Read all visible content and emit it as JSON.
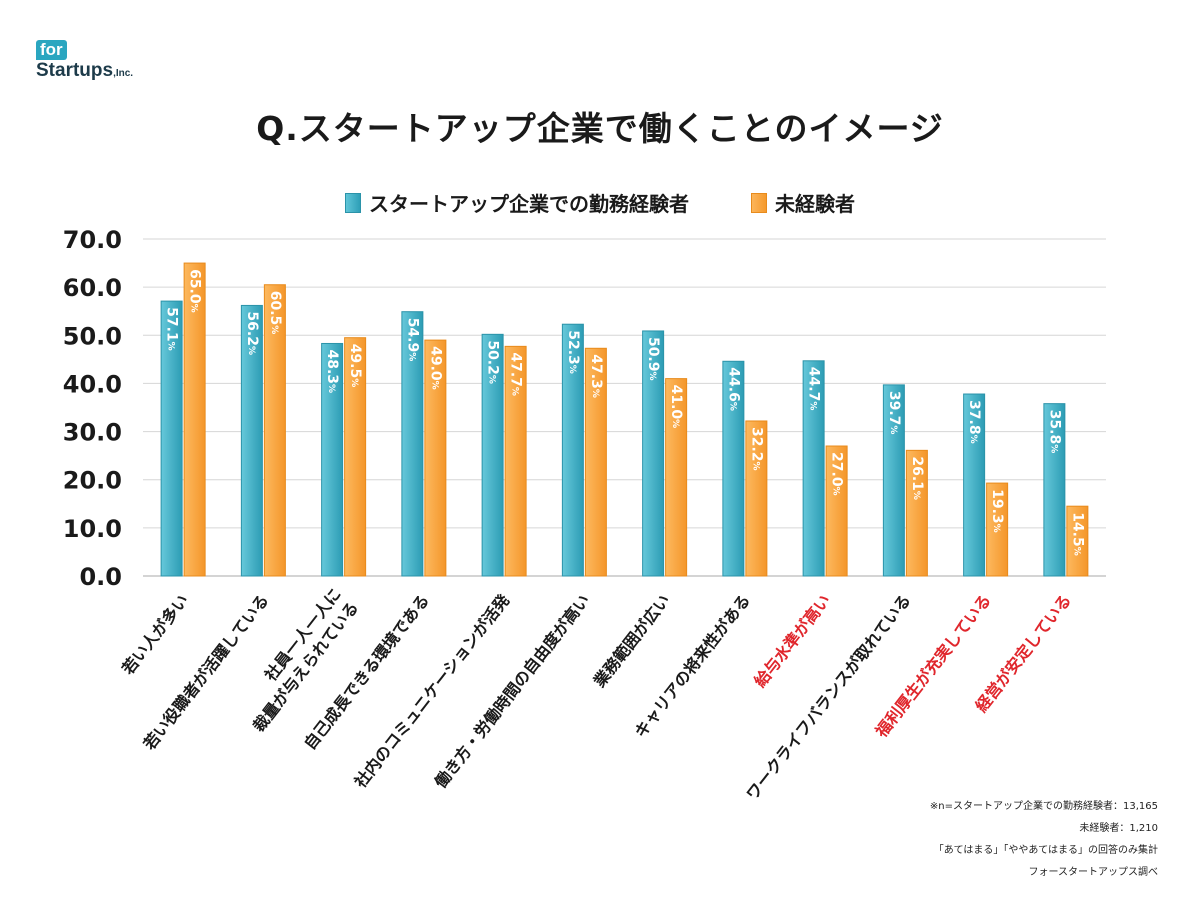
{
  "logo": {
    "badge": "for",
    "name": "Startups",
    "suffix": ",Inc."
  },
  "chart_data": {
    "type": "bar",
    "title": "Q.スタートアップ企業で働くことのイメージ",
    "xlabel": "",
    "ylabel": "",
    "ylim": [
      0,
      70
    ],
    "yticks": [
      "0.0",
      "10.0",
      "20.0",
      "30.0",
      "40.0",
      "50.0",
      "60.0",
      "70.0"
    ],
    "grid": true,
    "legend_position": "top-center",
    "value_suffix": "%",
    "categories": [
      "若い人が多い",
      "若い役職者が活躍している",
      "社員一人一人に\n裁量が与えられている",
      "自己成長できる環境である",
      "社内のコミュニケーションが活発",
      "働き方・労働時間の自由度が高い",
      "業務範囲が広い",
      "キャリアの将来性がある",
      "給与水準が高い",
      "ワークライフバランスが取れている",
      "福利厚生が充実している",
      "経営が安定している"
    ],
    "highlighted_categories": [
      "給与水準が高い",
      "福利厚生が充実している",
      "経営が安定している"
    ],
    "series": [
      {
        "name": "スタートアップ企業での勤務経験者",
        "color": "#3aaec4",
        "values": [
          57.1,
          56.2,
          48.3,
          54.9,
          50.2,
          52.3,
          50.9,
          44.6,
          44.7,
          39.7,
          37.8,
          35.8
        ]
      },
      {
        "name": "未経験者",
        "color": "#f7a23a",
        "values": [
          65.0,
          60.5,
          49.5,
          49.0,
          47.7,
          47.3,
          41.0,
          32.2,
          27.0,
          26.1,
          19.3,
          14.5
        ]
      }
    ]
  },
  "colors": {
    "teal": "#3aaec4",
    "orange": "#f7a23a",
    "highlight": "#e0262c",
    "grid": "#d6d6d6"
  },
  "notes": [
    "※n=スタートアップ企業での勤務経験者：13,165",
    "未経験者：1,210",
    "「あてはまる」「ややあてはまる」の回答のみ集計",
    "フォースタートアップス調べ"
  ]
}
